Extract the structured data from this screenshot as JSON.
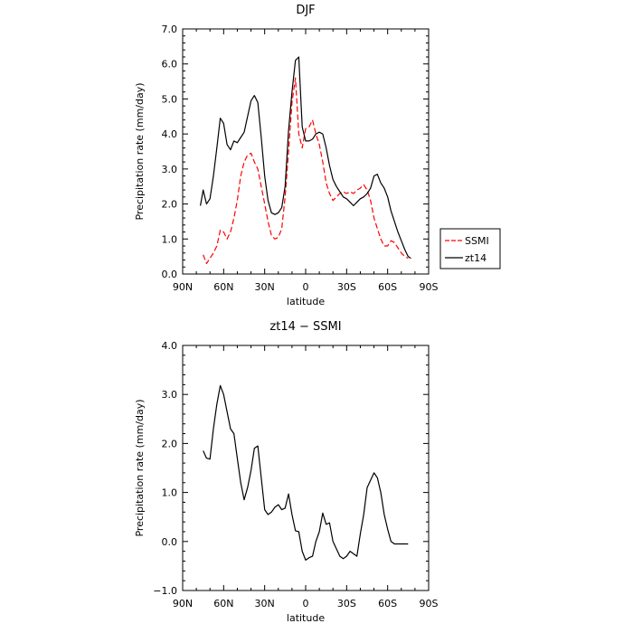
{
  "chart_data": [
    {
      "type": "line",
      "title": "DJF",
      "xlabel": "latitude",
      "ylabel": "Precipitation rate (mm/day)",
      "xlim": [
        -90,
        90
      ],
      "ylim": [
        0,
        7
      ],
      "x_ticks": [
        -90,
        -60,
        -30,
        0,
        30,
        60,
        90
      ],
      "x_tick_labels": [
        "90N",
        "60N",
        "30N",
        "0",
        "30S",
        "60S",
        "90S"
      ],
      "y_ticks": [
        0,
        1,
        2,
        3,
        4,
        5,
        6,
        7
      ],
      "y_tick_labels": [
        "0.0",
        "1.0",
        "2.0",
        "3.0",
        "4.0",
        "5.0",
        "6.0",
        "7.0"
      ],
      "legend": "right",
      "grid": false,
      "series": [
        {
          "name": "SSMI",
          "color": "#ff0000",
          "style": "dashed",
          "x": [
            -75,
            -72.5,
            -70,
            -67.5,
            -65,
            -62.5,
            -60,
            -57.5,
            -55,
            -52.5,
            -50,
            -47.5,
            -45,
            -42.5,
            -40,
            -37.5,
            -35,
            -32.5,
            -30,
            -27.5,
            -25,
            -22.5,
            -20,
            -17.5,
            -15,
            -12.5,
            -10,
            -7.5,
            -5,
            -2.5,
            0,
            2.5,
            5,
            7.5,
            10,
            12.5,
            15,
            17.5,
            20,
            22.5,
            25,
            27.5,
            30,
            32.5,
            35,
            37.5,
            40,
            42.5,
            45,
            47.5,
            50,
            52.5,
            55,
            57.5,
            60,
            62.5,
            65,
            67.5,
            70,
            72.5,
            75
          ],
          "values": [
            0.55,
            0.3,
            0.45,
            0.6,
            0.8,
            1.25,
            1.2,
            1.0,
            1.2,
            1.6,
            2.1,
            2.8,
            3.2,
            3.4,
            3.45,
            3.2,
            3.0,
            2.5,
            2.0,
            1.5,
            1.1,
            1.0,
            1.05,
            1.3,
            2.2,
            3.5,
            4.9,
            5.6,
            4.0,
            3.6,
            4.15,
            4.2,
            4.4,
            4.0,
            3.7,
            3.2,
            2.6,
            2.3,
            2.1,
            2.2,
            2.3,
            2.35,
            2.3,
            2.35,
            2.3,
            2.4,
            2.45,
            2.55,
            2.4,
            2.1,
            1.6,
            1.3,
            1.0,
            0.8,
            0.8,
            0.95,
            0.9,
            0.75,
            0.6,
            0.5,
            0.45
          ]
        },
        {
          "name": "zt14",
          "color": "#000000",
          "style": "solid",
          "x": [
            -77,
            -75,
            -72.5,
            -70,
            -67.5,
            -65,
            -62.5,
            -60,
            -57.5,
            -55,
            -52.5,
            -50,
            -47.5,
            -45,
            -42.5,
            -40,
            -37.5,
            -35,
            -32.5,
            -30,
            -27.5,
            -25,
            -22.5,
            -20,
            -17.5,
            -15,
            -12.5,
            -10,
            -7.5,
            -5,
            -2.5,
            0,
            2.5,
            5,
            7.5,
            10,
            12.5,
            15,
            17.5,
            20,
            22.5,
            25,
            27.5,
            30,
            32.5,
            35,
            37.5,
            40,
            42.5,
            45,
            47.5,
            50,
            52.5,
            55,
            57.5,
            60,
            62.5,
            65,
            67.5,
            70,
            72.5,
            75,
            77
          ],
          "values": [
            1.95,
            2.4,
            2.0,
            2.15,
            2.8,
            3.6,
            4.45,
            4.3,
            3.7,
            3.55,
            3.8,
            3.75,
            3.9,
            4.05,
            4.5,
            4.95,
            5.1,
            4.9,
            3.9,
            2.8,
            2.1,
            1.75,
            1.7,
            1.75,
            1.9,
            2.5,
            4.1,
            5.2,
            6.1,
            6.2,
            4.2,
            3.8,
            3.8,
            3.85,
            4.0,
            4.05,
            4.0,
            3.6,
            3.1,
            2.7,
            2.5,
            2.35,
            2.2,
            2.15,
            2.05,
            1.95,
            2.05,
            2.15,
            2.2,
            2.3,
            2.45,
            2.8,
            2.85,
            2.6,
            2.45,
            2.2,
            1.8,
            1.5,
            1.2,
            0.95,
            0.7,
            0.5,
            0.45
          ]
        }
      ]
    },
    {
      "type": "line",
      "title": "zt14 − SSMI",
      "xlabel": "latitude",
      "ylabel": "Precipitation rate (mm/day)",
      "xlim": [
        -90,
        90
      ],
      "ylim": [
        -1,
        4
      ],
      "x_ticks": [
        -90,
        -60,
        -30,
        0,
        30,
        60,
        90
      ],
      "x_tick_labels": [
        "90N",
        "60N",
        "30N",
        "0",
        "30S",
        "60S",
        "90S"
      ],
      "y_ticks": [
        -1,
        0,
        1,
        2,
        3,
        4
      ],
      "y_tick_labels": [
        "−1.0",
        "0.0",
        "1.0",
        "2.0",
        "3.0",
        "4.0"
      ],
      "grid": false,
      "series": [
        {
          "name": "",
          "color": "#000000",
          "style": "solid",
          "x": [
            -75,
            -72.5,
            -70,
            -67.5,
            -65,
            -62.5,
            -60,
            -57.5,
            -55,
            -52.5,
            -50,
            -47.5,
            -45,
            -42.5,
            -40,
            -37.5,
            -35,
            -32.5,
            -30,
            -27.5,
            -25,
            -22.5,
            -20,
            -17.5,
            -15,
            -12.5,
            -10,
            -7.5,
            -5,
            -2.5,
            0,
            2.5,
            5,
            7.5,
            10,
            12.5,
            15,
            17.5,
            20,
            22.5,
            25,
            27.5,
            30,
            32.5,
            35,
            37.5,
            40,
            42.5,
            45,
            47.5,
            50,
            52.5,
            55,
            57.5,
            60,
            62.5,
            65,
            67.5,
            70,
            72.5,
            75
          ],
          "values": [
            1.85,
            1.7,
            1.68,
            2.3,
            2.8,
            3.18,
            3.0,
            2.65,
            2.3,
            2.2,
            1.7,
            1.2,
            0.85,
            1.1,
            1.45,
            1.9,
            1.95,
            1.3,
            0.65,
            0.55,
            0.6,
            0.7,
            0.75,
            0.65,
            0.68,
            0.97,
            0.55,
            0.22,
            0.2,
            -0.2,
            -0.38,
            -0.33,
            -0.3,
            0.0,
            0.2,
            0.58,
            0.35,
            0.38,
            0.0,
            -0.15,
            -0.3,
            -0.35,
            -0.3,
            -0.2,
            -0.25,
            -0.3,
            0.15,
            0.55,
            1.1,
            1.25,
            1.4,
            1.3,
            1.0,
            0.55,
            0.25,
            0.0,
            -0.05,
            -0.05,
            -0.05,
            -0.05,
            -0.05
          ]
        }
      ]
    }
  ]
}
